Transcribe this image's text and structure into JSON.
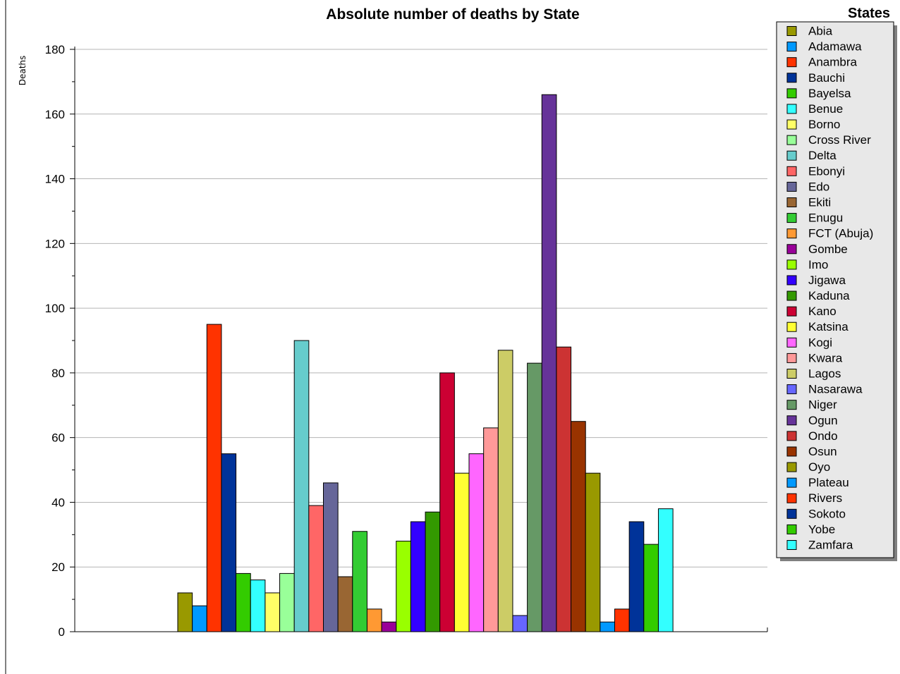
{
  "chart_data": {
    "type": "bar",
    "title": "Absolute number of deaths by State",
    "xlabel": "",
    "ylabel": "Deaths",
    "ylim": [
      0,
      180
    ],
    "yticks": [
      "0",
      "20",
      "40",
      "60",
      "80",
      "100",
      "120",
      "140",
      "160",
      "180"
    ],
    "grid": "horizontal",
    "legend_title": "States",
    "legend_position": "right",
    "categories": [
      "Abia",
      "Adamawa",
      "Anambra",
      "Bauchi",
      "Bayelsa",
      "Benue",
      "Borno",
      "Cross River",
      "Delta",
      "Ebonyi",
      "Edo",
      "Ekiti",
      "Enugu",
      "FCT (Abuja)",
      "Gombe",
      "Imo",
      "Jigawa",
      "Kaduna",
      "Kano",
      "Katsina",
      "Kogi",
      "Kwara",
      "Lagos",
      "Nasarawa",
      "Niger",
      "Ogun",
      "Ondo",
      "Osun",
      "Oyo",
      "Plateau",
      "Rivers",
      "Sokoto",
      "Yobe",
      "Zamfara"
    ],
    "values": [
      12,
      8,
      95,
      55,
      18,
      16,
      12,
      18,
      90,
      39,
      46,
      17,
      31,
      7,
      3,
      28,
      34,
      37,
      80,
      49,
      55,
      63,
      87,
      5,
      83,
      166,
      88,
      65,
      49,
      3,
      7,
      34,
      27,
      38
    ],
    "colors": [
      "#999900",
      "#0099ff",
      "#ff3300",
      "#003399",
      "#33cc00",
      "#33ffff",
      "#ffff66",
      "#99ff99",
      "#66cccc",
      "#ff6666",
      "#666699",
      "#996633",
      "#33cc33",
      "#ff9933",
      "#990099",
      "#99ff00",
      "#3300ff",
      "#339900",
      "#cc0033",
      "#ffff33",
      "#ff66ff",
      "#ff9999",
      "#cccc66",
      "#6666ff",
      "#669966",
      "#663399",
      "#cc3333",
      "#993300",
      "#999900",
      "#0099ff",
      "#ff3300",
      "#003399",
      "#33cc00",
      "#33ffff"
    ]
  }
}
